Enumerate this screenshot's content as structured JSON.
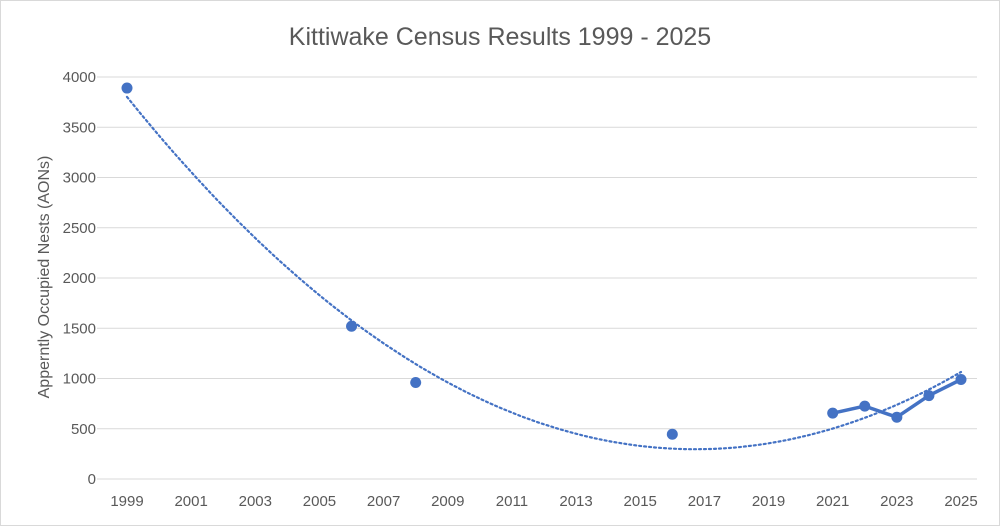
{
  "chart_data": {
    "type": "line",
    "title": "Kittiwake Census Results 1999 - 2025",
    "xlabel": "",
    "ylabel": "Apperntly Occupied Nests (AONs)",
    "xlim": [
      1999,
      2025
    ],
    "ylim": [
      0,
      4000
    ],
    "x_ticks": [
      "1999",
      "2001",
      "2003",
      "2005",
      "2007",
      "2009",
      "2011",
      "2013",
      "2015",
      "2017",
      "2019",
      "2021",
      "2023",
      "2025"
    ],
    "y_ticks": [
      "0",
      "500",
      "1000",
      "1500",
      "2000",
      "2500",
      "3000",
      "3500",
      "4000"
    ],
    "grid": "horizontal",
    "legend": "none",
    "series": [
      {
        "style": "markers",
        "color": "#4472c4",
        "points": [
          {
            "x": 1999,
            "y": 3890
          },
          {
            "x": 2006,
            "y": 1520
          },
          {
            "x": 2008,
            "y": 960
          },
          {
            "x": 2016,
            "y": 445
          }
        ]
      },
      {
        "style": "line-markers",
        "color": "#4472c4",
        "points": [
          {
            "x": 2021,
            "y": 655
          },
          {
            "x": 2022,
            "y": 725
          },
          {
            "x": 2023,
            "y": 615
          },
          {
            "x": 2024,
            "y": 830
          },
          {
            "x": 2025,
            "y": 990
          }
        ]
      }
    ],
    "trendline": {
      "type": "polynomial",
      "order": 2,
      "style": "dotted",
      "color": "#4472c4",
      "x_range": [
        1999,
        2025
      ]
    }
  },
  "colors": {
    "text": "#595959",
    "grid": "#d9d9d9",
    "series": "#4472c4"
  }
}
